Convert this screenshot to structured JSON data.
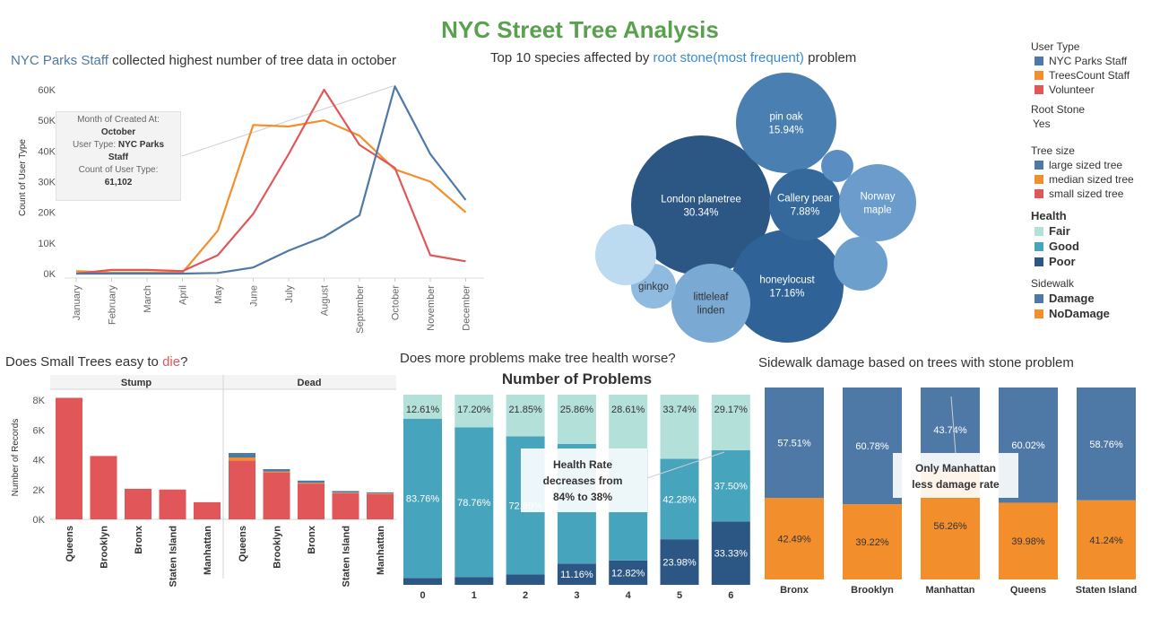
{
  "dashboard": {
    "title": "NYC Street Tree Analysis"
  },
  "colors": {
    "parks": "#4e79a7",
    "trees_count": "#f28e2b",
    "volunteer": "#e15759",
    "fair": "#b4e0da",
    "good": "#47a4bd",
    "poor": "#2c5785",
    "damage": "#4e79a7",
    "nodamage": "#f28e2b",
    "title_green": "#59a14f"
  },
  "legend": {
    "user_type_title": "User Type",
    "user_types": [
      "NYC Parks Staff",
      "TreesCount Staff",
      "Volunteer"
    ],
    "root_stone_title": "Root Stone",
    "root_stone_value": "Yes",
    "tree_size_title": "Tree size",
    "tree_sizes": [
      "large sized tree",
      "median sized tree",
      "small sized tree"
    ],
    "health_title": "Health",
    "health": [
      "Fair",
      "Good",
      "Poor"
    ],
    "sidewalk_title": "Sidewalk",
    "sidewalk": [
      "Damage",
      "NoDamage"
    ]
  },
  "tooltip": {
    "l1": "Month of Created At:",
    "l2": "October",
    "l3a": "User Type: ",
    "l3b": "NYC Parks",
    "l4": "Staff",
    "l5": "Count of User Type:",
    "l6": "61,102"
  },
  "chart_data": [
    {
      "id": "user_type_line",
      "type": "line",
      "title_highlight": "NYC Parks Staff",
      "title_rest": " collected highest number of tree data in october",
      "ylabel": "Count of User Type",
      "ylim": [
        0,
        65000
      ],
      "yticks": [
        0,
        10000,
        20000,
        30000,
        40000,
        50000,
        60000
      ],
      "ytick_labels": [
        "0K",
        "10K",
        "20K",
        "30K",
        "40K",
        "50K",
        "60K"
      ],
      "categories": [
        "January",
        "February",
        "March",
        "April",
        "May",
        "June",
        "July",
        "August",
        "September",
        "October",
        "November",
        "December"
      ],
      "series": [
        {
          "name": "NYC Parks Staff",
          "values": [
            0,
            0,
            0,
            0,
            200,
            2000,
            7500,
            12000,
            19000,
            61102,
            39000,
            24000
          ]
        },
        {
          "name": "TreesCount Staff",
          "values": [
            800,
            300,
            300,
            300,
            14000,
            48500,
            48000,
            50000,
            45000,
            34000,
            30000,
            20000
          ]
        },
        {
          "name": "Volunteer",
          "values": [
            0,
            1200,
            1200,
            800,
            6000,
            19500,
            39000,
            60000,
            42000,
            34500,
            6000,
            4000
          ]
        }
      ]
    },
    {
      "id": "species_bubble",
      "type": "bubble",
      "title_pre": "Top 10 species affected by ",
      "title_highlight": "root stone(most frequent)",
      "title_post": " problem",
      "bubbles": [
        {
          "name": "London planetree",
          "pct": "30.34%"
        },
        {
          "name": "honeylocust",
          "pct": "17.16%"
        },
        {
          "name": "pin oak",
          "pct": "15.94%"
        },
        {
          "name": "Callery pear",
          "pct": "7.88%"
        },
        {
          "name": "Norway maple",
          "pct": ""
        },
        {
          "name": "littleleaf linden",
          "pct": ""
        },
        {
          "name": "ginkgo",
          "pct": ""
        },
        {
          "name": "",
          "pct": ""
        },
        {
          "name": "",
          "pct": ""
        },
        {
          "name": "",
          "pct": ""
        }
      ]
    },
    {
      "id": "small_trees_bar",
      "type": "bar",
      "title_pre": "Does Small Trees easy to ",
      "title_highlight": "die",
      "title_post": "?",
      "ylabel": "Number of Records",
      "ylim": [
        0,
        9000
      ],
      "yticks": [
        0,
        2000,
        4000,
        6000,
        8000
      ],
      "ytick_labels": [
        "0K",
        "2K",
        "4K",
        "6K",
        "8K"
      ],
      "panels": [
        "Stump",
        "Dead"
      ],
      "categories": [
        "Queens",
        "Brooklyn",
        "Bronx",
        "Staten Island",
        "Manhattan"
      ],
      "series": [
        {
          "name": "small sized tree",
          "values": [
            [
              8150,
              4250,
              2050,
              2000,
              1150
            ],
            [
              3950,
              3150,
              2400,
              1750,
              1700
            ]
          ]
        },
        {
          "name": "median sized tree",
          "values": [
            [
              0,
              0,
              0,
              0,
              0
            ],
            [
              200,
              60,
              50,
              40,
              40
            ]
          ]
        },
        {
          "name": "large sized tree",
          "values": [
            [
              0,
              0,
              0,
              0,
              0
            ],
            [
              300,
              160,
              150,
              110,
              70
            ]
          ]
        }
      ]
    },
    {
      "id": "problems_health",
      "type": "bar",
      "title_q": "Does more problems make tree health worse?",
      "title": "Number of Problems",
      "categories": [
        "0",
        "1",
        "2",
        "3",
        "4",
        "5",
        "6"
      ],
      "series": [
        {
          "name": "Poor",
          "values": [
            3.63,
            4.04,
            5.46,
            11.16,
            12.82,
            23.98,
            33.33
          ],
          "labels": [
            "",
            "",
            "",
            "11.16%",
            "12.82%",
            "23.98%",
            "33.33%"
          ]
        },
        {
          "name": "Good",
          "values": [
            83.76,
            78.76,
            72.69,
            62.98,
            58.57,
            42.28,
            37.5
          ],
          "labels": [
            "83.76%",
            "78.76%",
            "72.69%",
            "",
            "",
            "42.28%",
            "37.50%"
          ]
        },
        {
          "name": "Fair",
          "values": [
            12.61,
            17.2,
            21.85,
            25.86,
            28.61,
            33.74,
            29.17
          ],
          "labels": [
            "12.61%",
            "17.20%",
            "21.85%",
            "25.86%",
            "28.61%",
            "33.74%",
            "29.17%"
          ]
        }
      ],
      "annotation": [
        "Health Rate",
        "decreases from",
        "84% to 38%"
      ]
    },
    {
      "id": "sidewalk_damage",
      "type": "bar",
      "title": "Sidewalk damage based on trees with stone problem",
      "categories": [
        "Bronx",
        "Brooklyn",
        "Manhattan",
        "Queens",
        "Staten Island"
      ],
      "series": [
        {
          "name": "NoDamage",
          "values": [
            42.49,
            39.22,
            56.26,
            39.98,
            41.24
          ],
          "labels": [
            "42.49%",
            "39.22%",
            "56.26%",
            "39.98%",
            "41.24%"
          ]
        },
        {
          "name": "Damage",
          "values": [
            57.51,
            60.78,
            43.74,
            60.02,
            58.76
          ],
          "labels": [
            "57.51%",
            "60.78%",
            "43.74%",
            "60.02%",
            "58.76%"
          ]
        }
      ],
      "annotation": [
        "Only Manhattan",
        "less damage rate"
      ]
    }
  ]
}
